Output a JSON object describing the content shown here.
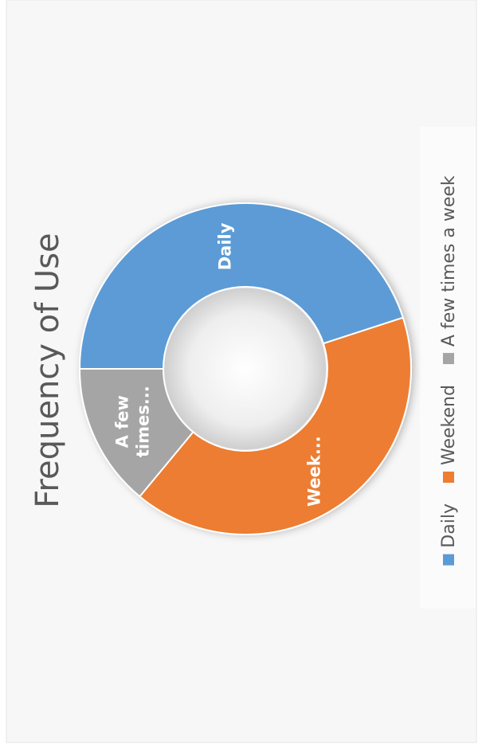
{
  "chart_data": {
    "type": "doughnut",
    "title": "Frequency of Use",
    "categories": [
      "Daily",
      "Weekend",
      "A few times a week"
    ],
    "values": [
      45,
      41,
      14
    ],
    "colors": [
      "#5b9bd5",
      "#ed7d31",
      "#a5a5a5"
    ],
    "slice_labels": [
      [
        "Daily"
      ],
      [
        "Week..."
      ],
      [
        "A few",
        "times..."
      ]
    ],
    "legend": "bottom"
  }
}
